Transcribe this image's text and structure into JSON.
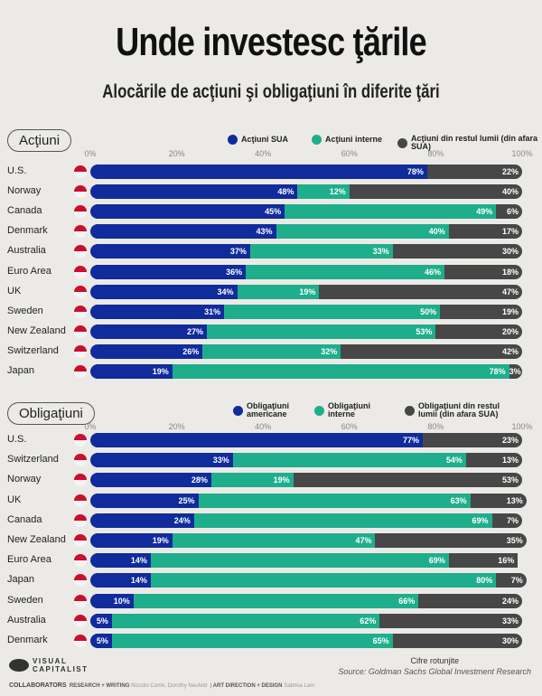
{
  "title": "Unde investesc ţările",
  "subtitle": "Alocările de acţiuni şi obligaţiuni în diferite ţări",
  "colors": {
    "us": "#102b9c",
    "domestic": "#1fae8c",
    "rest": "#474747"
  },
  "chart_data": [
    {
      "type": "bar",
      "orientation": "horizontal",
      "stacked": true,
      "section_label": "Acţiuni",
      "xlim": [
        0,
        100
      ],
      "tick_labels": [
        "0%",
        "20%",
        "40%",
        "60%",
        "80%",
        "100%"
      ],
      "legend": [
        "Acţiuni SUA",
        "Acţiuni interne",
        "Acţiuni din restul lumii (din afara SUA)"
      ],
      "categories": [
        "U.S.",
        "Norway",
        "Canada",
        "Denmark",
        "Australia",
        "Euro Area",
        "UK",
        "Sweden",
        "New Zealand",
        "Switzerland",
        "Japan"
      ],
      "series": [
        {
          "name": "Acţiuni SUA",
          "values": [
            78,
            48,
            45,
            43,
            37,
            36,
            34,
            31,
            27,
            26,
            19
          ]
        },
        {
          "name": "Acţiuni interne",
          "values": [
            0,
            12,
            49,
            40,
            33,
            46,
            19,
            50,
            53,
            32,
            78
          ]
        },
        {
          "name": "Acţiuni din restul lumii (din afara SUA)",
          "values": [
            22,
            40,
            6,
            17,
            30,
            18,
            47,
            19,
            20,
            42,
            3
          ]
        }
      ]
    },
    {
      "type": "bar",
      "orientation": "horizontal",
      "stacked": true,
      "section_label": "Obligaţiuni",
      "xlim": [
        0,
        100
      ],
      "tick_labels": [
        "0%",
        "20%",
        "40%",
        "60%",
        "80%",
        "100%"
      ],
      "legend": [
        "Obligaţiuni americane",
        "Obligaţiuni interne",
        "Obligaţiuni din restul lumii (din afara SUA)"
      ],
      "categories": [
        "U.S.",
        "Switzerland",
        "Norway",
        "UK",
        "Canada",
        "New Zealand",
        "Euro Area",
        "Japan",
        "Sweden",
        "Australia",
        "Denmark"
      ],
      "series": [
        {
          "name": "Obligaţiuni americane",
          "values": [
            77,
            33,
            28,
            25,
            24,
            19,
            14,
            14,
            10,
            5,
            5
          ]
        },
        {
          "name": "Obligaţiuni interne",
          "values": [
            0,
            54,
            19,
            63,
            69,
            47,
            69,
            80,
            66,
            62,
            65
          ]
        },
        {
          "name": "Obligaţiuni din restul lumii (din afara SUA)",
          "values": [
            23,
            13,
            53,
            13,
            7,
            35,
            16,
            7,
            24,
            33,
            30
          ]
        }
      ]
    }
  ],
  "footer": {
    "logo": "VISUAL CAPITALIST",
    "note": "Cifre rotunjite",
    "source": "Source: Goldman Sachs Global Investment Research",
    "collaborators": "COLLABORATORS",
    "research_label": "RESEARCH + WRITING",
    "research_names": "Niccolo Conte, Dorothy Neufeld",
    "design_label": "ART DIRECTION + DESIGN",
    "design_names": "Sabrina Lam"
  }
}
